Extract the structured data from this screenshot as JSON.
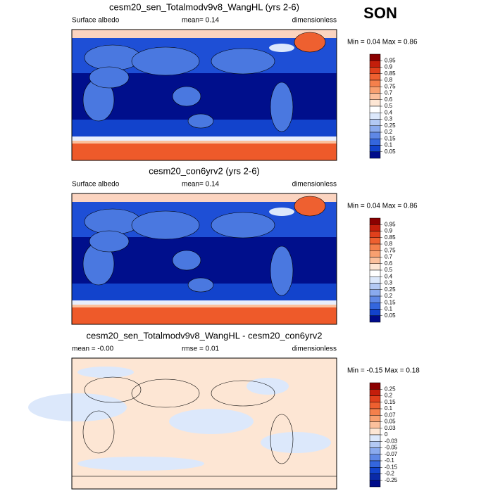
{
  "season": "SON",
  "panels": [
    {
      "title": "cesm20_sen_Totalmodv9v8_WangHL (yrs 2-6)",
      "left": "Surface albedo",
      "center": "mean=  0.14",
      "right": "dimensionless",
      "min_max": "Min =  0.04 Max =  0.86",
      "colorbar": {
        "levels": [
          0.95,
          0.9,
          0.85,
          0.8,
          0.75,
          0.7,
          0.6,
          0.5,
          0.4,
          0.3,
          0.25,
          0.2,
          0.15,
          0.1,
          0.05
        ],
        "colors": [
          "#8b0000",
          "#c41e0b",
          "#e0401c",
          "#ee6030",
          "#f4804c",
          "#f8a070",
          "#fbc09c",
          "#fde6d4",
          "#ffffff",
          "#dce8fb",
          "#b3c9f4",
          "#8aaaee",
          "#5f88e6",
          "#3466dd",
          "#1243cc",
          "#000c8a"
        ]
      }
    },
    {
      "title": "cesm20_con6yrv2 (yrs 2-6)",
      "left": "Surface albedo",
      "center": "mean=  0.14",
      "right": "dimensionless",
      "min_max": "Min =  0.04 Max =  0.86",
      "colorbar": {
        "levels": [
          0.95,
          0.9,
          0.85,
          0.8,
          0.75,
          0.7,
          0.6,
          0.5,
          0.4,
          0.3,
          0.25,
          0.2,
          0.15,
          0.1,
          0.05
        ],
        "colors": [
          "#8b0000",
          "#c41e0b",
          "#e0401c",
          "#ee6030",
          "#f4804c",
          "#f8a070",
          "#fbc09c",
          "#fde6d4",
          "#ffffff",
          "#dce8fb",
          "#b3c9f4",
          "#8aaaee",
          "#5f88e6",
          "#3466dd",
          "#1243cc",
          "#000c8a"
        ]
      }
    },
    {
      "title": "cesm20_sen_Totalmodv9v8_WangHL - cesm20_con6yrv2",
      "left": "mean =  -0.00",
      "center": "rmse =  0.01",
      "right": "dimensionless",
      "min_max": "Min =  -0.15 Max =  0.18",
      "colorbar": {
        "levels": [
          0.25,
          0.2,
          0.15,
          0.1,
          0.07,
          0.05,
          0.03,
          0,
          -0.03,
          -0.05,
          -0.07,
          -0.1,
          -0.15,
          -0.2,
          -0.25
        ],
        "colors": [
          "#8b0000",
          "#c41e0b",
          "#e0401c",
          "#ee6030",
          "#f4804c",
          "#f8a070",
          "#fbc09c",
          "#fde6d4",
          "#dce8fb",
          "#b3c9f4",
          "#8aaaee",
          "#5f88e6",
          "#3466dd",
          "#1243cc",
          "#0a2aa8",
          "#000c8a"
        ]
      }
    }
  ]
}
